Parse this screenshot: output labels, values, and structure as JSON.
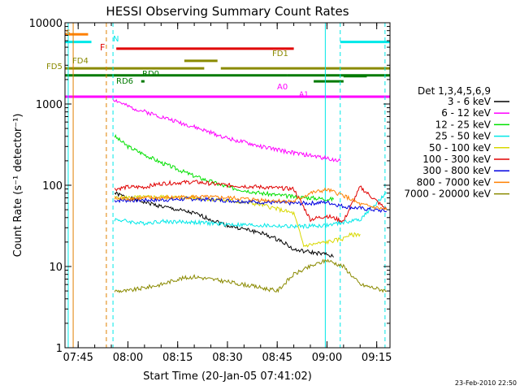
{
  "chart_data": {
    "type": "line",
    "title": "HESSI Observing Summary Count Rates",
    "xlabel": "Start Time (20-Jan-05 07:41:02)",
    "ylabel": "Count Rate (s⁻¹ detector⁻¹)",
    "footer": "23-Feb-2010 22:50",
    "y_scale": "log",
    "ylim": [
      1,
      10000
    ],
    "xlim": [
      "07:41:02",
      "09:19:00"
    ],
    "x_ticks": [
      "07:45",
      "08:00",
      "08:15",
      "08:30",
      "08:45",
      "09:00",
      "09:15"
    ],
    "y_ticks": [
      "1",
      "10",
      "100",
      "1000",
      "10000"
    ],
    "legend": {
      "header": "Det 1,3,4,5,6,9",
      "placement": "right",
      "entries": [
        {
          "label": "3 - 6 keV",
          "color": "#000000"
        },
        {
          "label": "6 - 12 keV",
          "color": "#ff00ff"
        },
        {
          "label": "12 - 25 keV",
          "color": "#00e000"
        },
        {
          "label": "25 - 50 keV",
          "color": "#00e8e8"
        },
        {
          "label": "50 - 100 keV",
          "color": "#d8d800"
        },
        {
          "label": "100 - 300 keV",
          "color": "#e00000"
        },
        {
          "label": "300 - 800 keV",
          "color": "#0000e0"
        },
        {
          "label": "800 - 7000 keV",
          "color": "#ff8000"
        },
        {
          "label": "7000 - 20000 keV",
          "color": "#8a8a00"
        }
      ]
    },
    "series": [
      {
        "name": "3 - 6 keV",
        "color": "#000000",
        "x": [
          "07:56:00",
          "08:00",
          "08:10",
          "08:20",
          "08:30",
          "08:40",
          "08:47",
          "08:50",
          "08:55",
          "09:00",
          "09:02"
        ],
        "y": [
          80,
          70,
          55,
          45,
          32,
          26,
          20,
          16,
          15,
          14,
          13
        ]
      },
      {
        "name": "6 - 12 keV",
        "color": "#ff00ff",
        "x": [
          "07:55:30",
          "07:56:30",
          "08:00",
          "08:10",
          "08:20",
          "08:30",
          "08:40",
          "08:50",
          "09:00",
          "09:04"
        ],
        "y": [
          1150,
          1100,
          930,
          700,
          520,
          380,
          300,
          250,
          215,
          200
        ]
      },
      {
        "name": "12 - 25 keV",
        "color": "#00e000",
        "x": [
          "07:56:00",
          "08:00",
          "08:10",
          "08:20",
          "08:30",
          "08:40",
          "08:50",
          "09:00",
          "09:02"
        ],
        "y": [
          400,
          300,
          190,
          130,
          95,
          80,
          72,
          68,
          67
        ]
      },
      {
        "name": "25 - 50 keV",
        "color": "#00e8e8",
        "x": [
          "07:56:00",
          "08:00",
          "08:04",
          "08:10",
          "08:20",
          "08:30",
          "08:40",
          "08:50",
          "09:00",
          "09:10",
          "09:18"
        ],
        "y": [
          38,
          36,
          34,
          36,
          35,
          33,
          32,
          31,
          32,
          38,
          80
        ]
      },
      {
        "name": "50 - 100 keV",
        "color": "#d8d800",
        "x": [
          "07:56:00",
          "08:10",
          "08:20",
          "08:30",
          "08:40",
          "08:50",
          "08:53",
          "09:00",
          "09:05",
          "09:06",
          "09:10"
        ],
        "y": [
          70,
          72,
          70,
          65,
          58,
          45,
          18,
          20,
          22,
          24,
          25
        ]
      },
      {
        "name": "100 - 300 keV",
        "color": "#e00000",
        "x": [
          "07:56:00",
          "08:00",
          "08:05",
          "08:10",
          "08:20",
          "08:30",
          "08:40",
          "08:50",
          "08:55",
          "09:00",
          "09:05",
          "09:10",
          "09:18"
        ],
        "y": [
          90,
          95,
          95,
          105,
          110,
          100,
          95,
          90,
          38,
          42,
          36,
          95,
          50
        ]
      },
      {
        "name": "300 - 800 keV",
        "color": "#0000e0",
        "x": [
          "07:56:00",
          "08:10",
          "08:20",
          "08:30",
          "08:40",
          "08:50",
          "08:55",
          "09:00",
          "09:05",
          "09:10",
          "09:18"
        ],
        "y": [
          65,
          66,
          68,
          65,
          62,
          60,
          60,
          62,
          55,
          52,
          48
        ]
      },
      {
        "name": "800 - 7000 keV",
        "color": "#ff8000",
        "x": [
          "07:56:00",
          "08:10",
          "08:20",
          "08:30",
          "08:40",
          "08:50",
          "08:55",
          "09:00",
          "09:05",
          "09:10",
          "09:18"
        ],
        "y": [
          68,
          70,
          72,
          70,
          66,
          63,
          80,
          88,
          75,
          58,
          50
        ]
      },
      {
        "name": "7000 - 20000 keV",
        "color": "#8a8a00",
        "x": [
          "07:56:00",
          "08:00",
          "08:10",
          "08:15",
          "08:20",
          "08:30",
          "08:40",
          "08:45",
          "08:50",
          "08:55",
          "09:00",
          "09:05",
          "09:10",
          "09:18"
        ],
        "y": [
          5,
          5,
          6,
          7,
          7.5,
          6.5,
          5.5,
          5,
          8,
          10,
          12,
          10,
          6,
          5
        ]
      }
    ],
    "annotations": [
      {
        "label": "S",
        "color": "#ff8000"
      },
      {
        "label": "N",
        "color": "#00e8e8"
      },
      {
        "label": "F",
        "color": "#e00000"
      },
      {
        "label": "FD1",
        "color": "#8a8a00"
      },
      {
        "label": "FD4",
        "color": "#8a8a00"
      },
      {
        "label": "FD5",
        "color": "#8a8a00"
      },
      {
        "label": "RD0",
        "color": "#007a00"
      },
      {
        "label": "RD6",
        "color": "#007a00"
      },
      {
        "label": "A0",
        "color": "#ff00ff"
      },
      {
        "label": "A1",
        "color": "#ff00ff"
      }
    ],
    "flag_bars": [
      {
        "label": "S",
        "color": "#ff8000",
        "x": [
          "07:41:02",
          "07:48:00"
        ],
        "y": 7200
      },
      {
        "label": "N",
        "color": "#00e8e8",
        "x": [
          "07:41:02",
          "07:49:00"
        ],
        "y": 5800
      },
      {
        "label": "N",
        "color": "#00e8e8",
        "x": [
          "09:04:00",
          "09:19:00"
        ],
        "y": 5800
      },
      {
        "label": "F",
        "color": "#e00000",
        "x": [
          "07:56:30",
          "08:50:00"
        ],
        "y": 4800
      },
      {
        "label": "FD1",
        "color": "#8a8a00",
        "x": [
          "08:17:00",
          "08:27:00"
        ],
        "y": 3400
      },
      {
        "label": "FD4",
        "color": "#8a8a00",
        "x": [
          "07:41:02",
          "08:23:00"
        ],
        "y": 2750
      },
      {
        "label": "FD5",
        "color": "#8a8a00",
        "x": [
          "08:28:00",
          "09:19:00"
        ],
        "y": 2750
      },
      {
        "label": "RD0",
        "color": "#007a00",
        "x": [
          "07:41:02",
          "08:48:00"
        ],
        "y": 2250
      },
      {
        "label": "RD0",
        "color": "#007a00",
        "x": [
          "08:48:00",
          "09:19:00"
        ],
        "y": 2250
      },
      {
        "label": "RD6",
        "color": "#007a00",
        "x": [
          "08:04:00",
          "08:05:00"
        ],
        "y": 1900
      },
      {
        "label": "A0",
        "color": "#007a00",
        "x": [
          "08:56:00",
          "09:05:00"
        ],
        "y": 1900
      },
      {
        "label": "A0",
        "color": "#007a00",
        "x": [
          "09:05:00",
          "09:12:00"
        ],
        "y": 2200
      },
      {
        "label": "A1",
        "color": "#ff00ff",
        "x": [
          "07:41:02",
          "09:19:00"
        ],
        "y": 1230
      }
    ],
    "vertical_lines": [
      {
        "x": "07:42:00",
        "color": "#00e8e8",
        "style": "solid"
      },
      {
        "x": "07:43:30",
        "color": "#e08000",
        "style": "solid"
      },
      {
        "x": "07:53:30",
        "color": "#e08000",
        "style": "dashed"
      },
      {
        "x": "07:55:30",
        "color": "#00e8e8",
        "style": "dashed"
      },
      {
        "x": "08:59:30",
        "color": "#00e8e8",
        "style": "solid"
      },
      {
        "x": "09:04:00",
        "color": "#00e8e8",
        "style": "dashed"
      },
      {
        "x": "09:17:30",
        "color": "#00e8e8",
        "style": "dashed"
      }
    ]
  }
}
